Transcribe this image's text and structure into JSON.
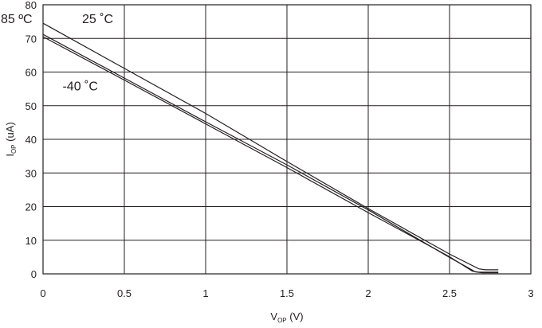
{
  "chart_data": {
    "type": "line",
    "xlim": [
      0,
      3
    ],
    "ylim": [
      0,
      80
    ],
    "x_ticks": [
      "0",
      "0.5",
      "1",
      "1.5",
      "2",
      "2.5",
      "3"
    ],
    "y_ticks": [
      "0",
      "10",
      "20",
      "30",
      "40",
      "50",
      "60",
      "70",
      "80"
    ],
    "xlabel": {
      "main": "V",
      "sub": "OP",
      "unit": " (V)"
    },
    "ylabel": {
      "main": "I",
      "sub": "OP",
      "unit": " (uA)"
    },
    "grid": true,
    "series": [
      {
        "name": "25 ˚C",
        "x": [
          0,
          0.5,
          1,
          1.5,
          2,
          2.5,
          2.68,
          2.72,
          2.8
        ],
        "y": [
          74.5,
          61.1,
          47.7,
          33.4,
          19.4,
          5.9,
          1.5,
          1.2,
          1.2
        ]
      },
      {
        "name": "85 ºC",
        "x": [
          0,
          0.5,
          1,
          1.5,
          2,
          2.5,
          2.66,
          2.7,
          2.8
        ],
        "y": [
          71.2,
          58.2,
          45.2,
          32.4,
          19.0,
          4.9,
          0.6,
          0.3,
          0.3
        ]
      },
      {
        "name": "-40 ˚C",
        "x": [
          0,
          0.5,
          1,
          1.5,
          2,
          2.5,
          2.64,
          2.68,
          2.8
        ],
        "y": [
          70.5,
          57.6,
          44.6,
          31.6,
          18.2,
          5.1,
          0.8,
          0.5,
          0.5
        ]
      }
    ],
    "annotations": [
      {
        "text": "85 ºC",
        "x": -0.26,
        "y": 74.5
      },
      {
        "text": "25 ˚C",
        "x": 0.24,
        "y": 74.5
      },
      {
        "text": "-40 ˚C",
        "x": 0.12,
        "y": 54.5
      }
    ]
  }
}
